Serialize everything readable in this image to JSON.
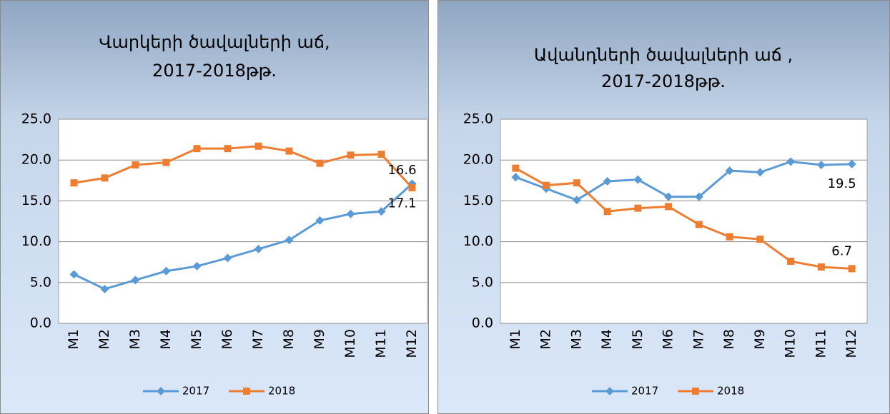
{
  "chart_data": [
    {
      "type": "line",
      "title": [
        "Վարկերի ծավալների աճ,",
        "2017-2018թթ."
      ],
      "categories": [
        "M1",
        "M2",
        "M3",
        "M4",
        "M5",
        "M6",
        "M7",
        "M8",
        "M9",
        "M10",
        "M11",
        "M12"
      ],
      "series": [
        {
          "name": "2017",
          "color": "#5b9bd5",
          "marker": "diamond",
          "values": [
            6.0,
            4.2,
            5.3,
            6.4,
            7.0,
            8.0,
            9.1,
            10.2,
            12.6,
            13.4,
            13.7,
            17.1
          ],
          "value_labels": [
            null,
            null,
            null,
            null,
            null,
            null,
            null,
            null,
            null,
            null,
            null,
            "17.1"
          ]
        },
        {
          "name": "2018",
          "color": "#ed7d31",
          "marker": "square",
          "values": [
            17.2,
            17.8,
            19.4,
            19.7,
            21.4,
            21.4,
            21.7,
            21.1,
            19.6,
            20.6,
            20.7,
            16.6
          ],
          "value_labels": [
            null,
            null,
            null,
            null,
            null,
            null,
            null,
            null,
            null,
            null,
            null,
            "16.6"
          ]
        }
      ],
      "ylim": [
        0,
        25
      ],
      "yticks": [
        {
          "value": 0,
          "label": "0.0"
        },
        {
          "value": 5,
          "label": "5.0"
        },
        {
          "value": 10,
          "label": "10.0"
        },
        {
          "value": 15,
          "label": "15.0"
        },
        {
          "value": 20,
          "label": "20.0"
        },
        {
          "value": 25,
          "label": "25.0"
        }
      ],
      "grid": true,
      "legend": "bottom"
    },
    {
      "type": "line",
      "title": [
        "Ավանդների ծավալների աճ ,",
        "2017-2018թթ."
      ],
      "categories": [
        "M1",
        "M2",
        "M3",
        "M4",
        "M5",
        "M6",
        "M7",
        "M8",
        "M9",
        "M10",
        "M11",
        "M12"
      ],
      "series": [
        {
          "name": "2017",
          "color": "#5b9bd5",
          "marker": "diamond",
          "values": [
            17.9,
            16.5,
            15.1,
            17.4,
            17.6,
            15.5,
            15.5,
            18.7,
            18.5,
            19.8,
            19.4,
            19.5
          ],
          "value_labels": [
            null,
            null,
            null,
            null,
            null,
            null,
            null,
            null,
            null,
            null,
            null,
            "19.5"
          ]
        },
        {
          "name": "2018",
          "color": "#ed7d31",
          "marker": "square",
          "values": [
            19.0,
            16.9,
            17.2,
            13.7,
            14.1,
            14.3,
            12.1,
            10.6,
            10.3,
            7.6,
            6.9,
            6.7
          ],
          "value_labels": [
            null,
            null,
            null,
            null,
            null,
            null,
            null,
            null,
            null,
            null,
            null,
            "6.7"
          ]
        }
      ],
      "ylim": [
        0,
        25
      ],
      "yticks": [
        {
          "value": 0,
          "label": "0.0"
        },
        {
          "value": 5,
          "label": "5.0"
        },
        {
          "value": 10,
          "label": "10.0"
        },
        {
          "value": 15,
          "label": "15.0"
        },
        {
          "value": 20,
          "label": "20.0"
        },
        {
          "value": 25,
          "label": "25.0"
        }
      ],
      "grid": true,
      "legend": "bottom"
    }
  ]
}
